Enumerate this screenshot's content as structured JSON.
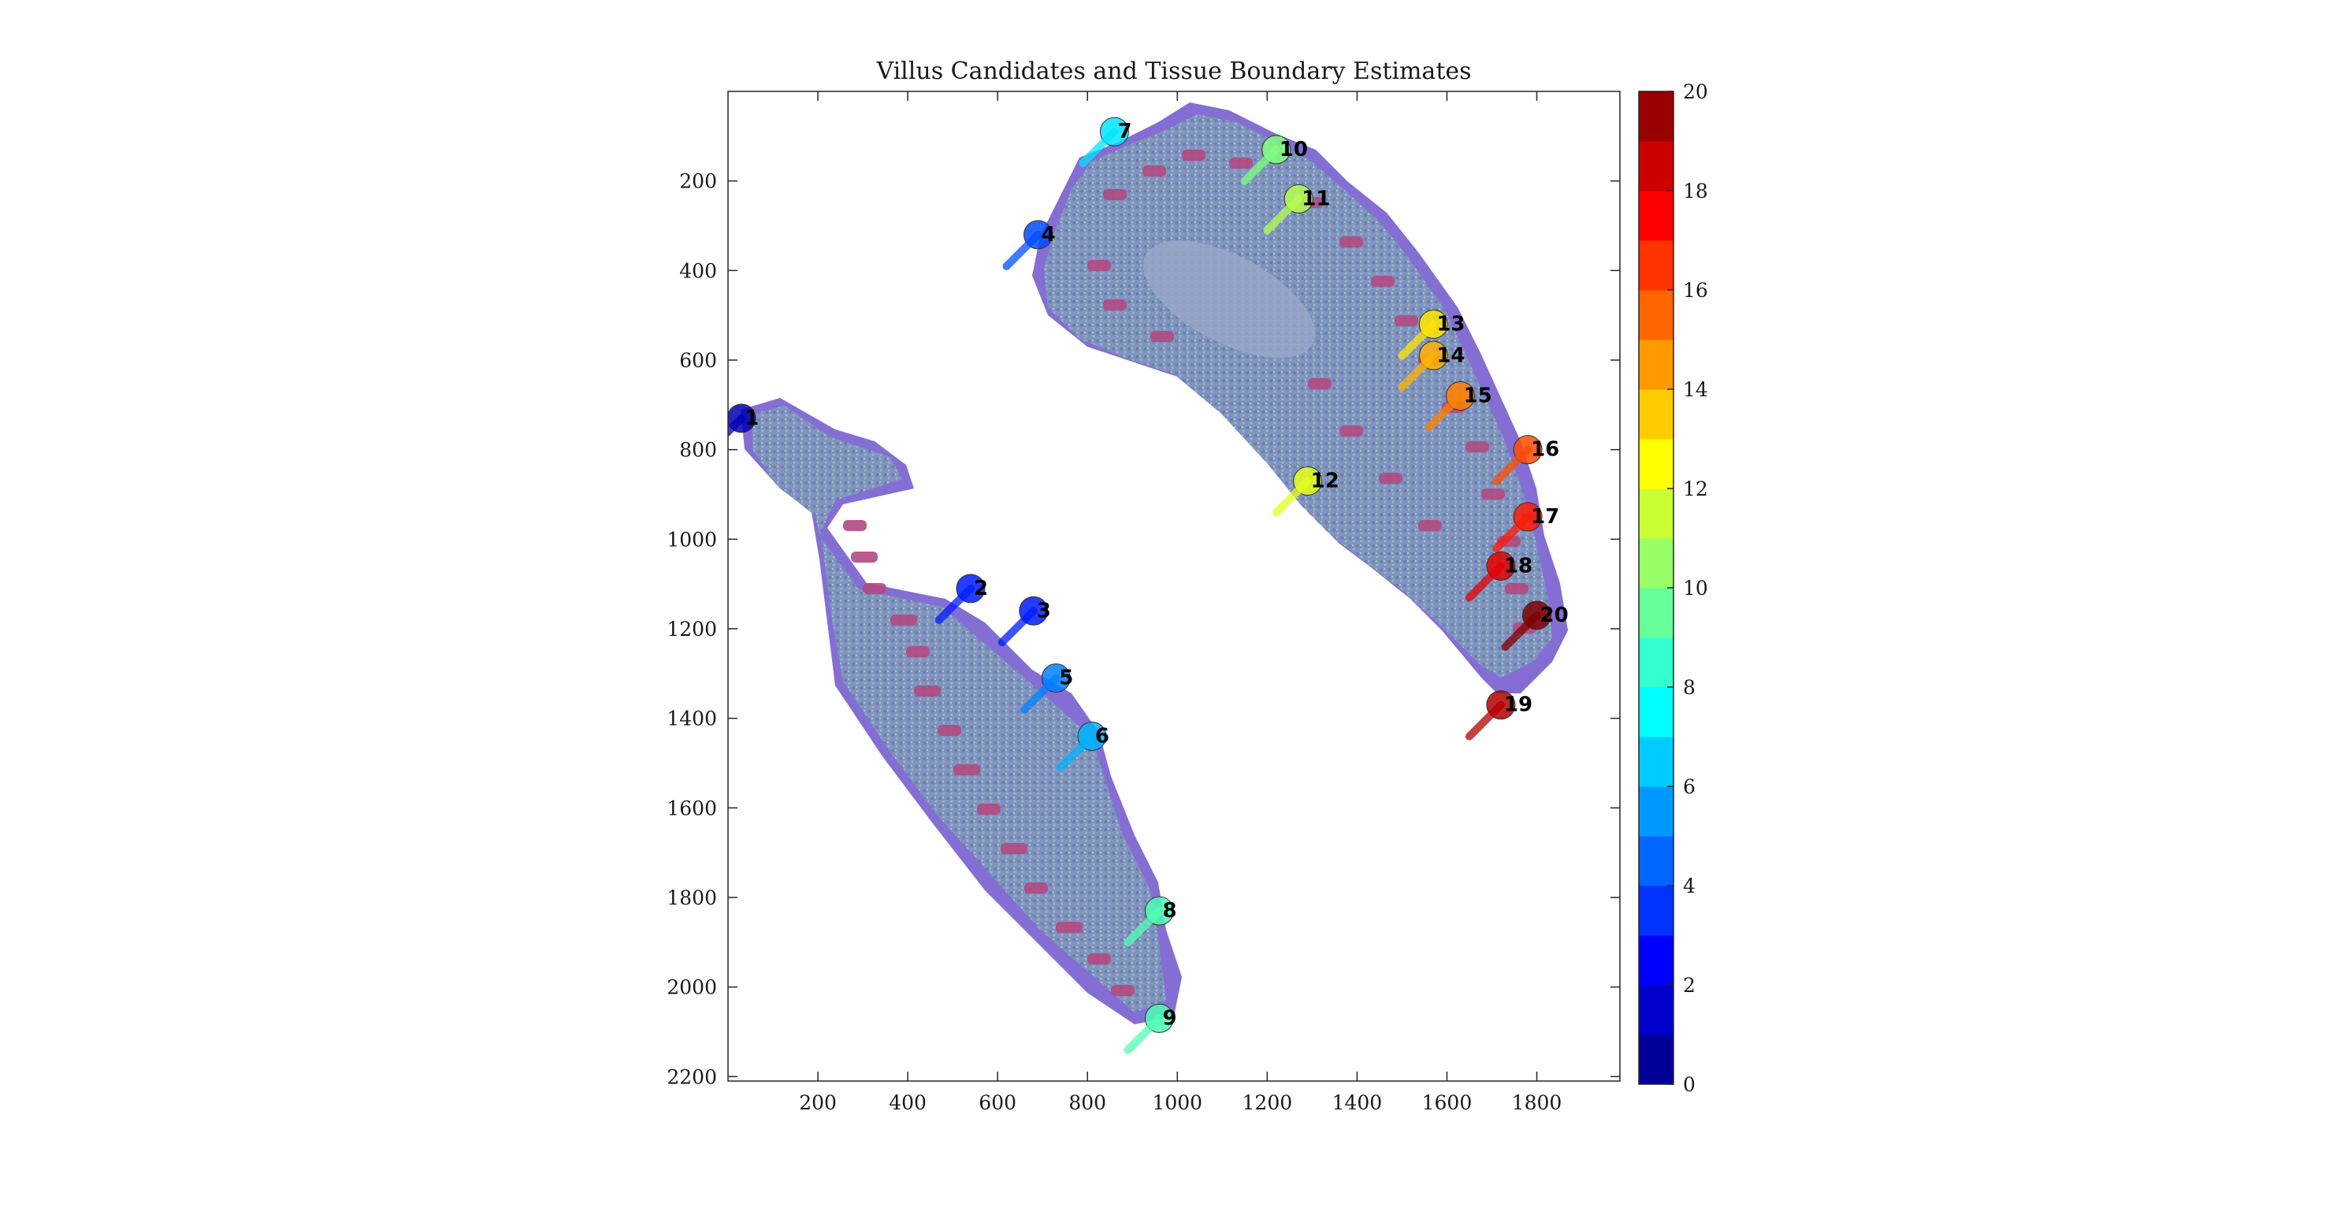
{
  "figure": {
    "title": "Villus Candidates and Tissue Boundary Estimates",
    "x_ticks": [
      "200",
      "400",
      "600",
      "800",
      "1000",
      "1200",
      "1400",
      "1600",
      "1800"
    ],
    "y_ticks": [
      "200",
      "400",
      "600",
      "800",
      "1000",
      "1200",
      "1400",
      "1600",
      "1800",
      "2000",
      "2200"
    ],
    "colorbar": {
      "ticks": [
        "0",
        "2",
        "4",
        "6",
        "8",
        "10",
        "12",
        "14",
        "16",
        "18",
        "20"
      ],
      "range": [
        0,
        20
      ],
      "levels": 20,
      "colormap": "jet"
    },
    "colors": {
      "tissue_base": "#8a9ac0",
      "tissue_edge": "#7a55d6",
      "crypt": "#b5457a",
      "stroma": "#a8e0b8",
      "submucosa": "#d9c8e6"
    }
  },
  "villi": [
    {
      "label": "1",
      "x": 30,
      "y": 730,
      "value": 1
    },
    {
      "label": "2",
      "x": 540,
      "y": 1110,
      "value": 3
    },
    {
      "label": "3",
      "x": 680,
      "y": 1160,
      "value": 3
    },
    {
      "label": "4",
      "x": 690,
      "y": 320,
      "value": 4
    },
    {
      "label": "5",
      "x": 730,
      "y": 1310,
      "value": 5
    },
    {
      "label": "6",
      "x": 810,
      "y": 1440,
      "value": 6
    },
    {
      "label": "7",
      "x": 860,
      "y": 90,
      "value": 7
    },
    {
      "label": "8",
      "x": 960,
      "y": 1830,
      "value": 9
    },
    {
      "label": "9",
      "x": 960,
      "y": 2070,
      "value": 9
    },
    {
      "label": "10",
      "x": 1220,
      "y": 130,
      "value": 10
    },
    {
      "label": "11",
      "x": 1270,
      "y": 240,
      "value": 11
    },
    {
      "label": "12",
      "x": 1290,
      "y": 870,
      "value": 12
    },
    {
      "label": "13",
      "x": 1570,
      "y": 520,
      "value": 13
    },
    {
      "label": "14",
      "x": 1570,
      "y": 590,
      "value": 14
    },
    {
      "label": "15",
      "x": 1630,
      "y": 680,
      "value": 15
    },
    {
      "label": "16",
      "x": 1780,
      "y": 800,
      "value": 16
    },
    {
      "label": "17",
      "x": 1780,
      "y": 950,
      "value": 17
    },
    {
      "label": "18",
      "x": 1720,
      "y": 1060,
      "value": 18
    },
    {
      "label": "19",
      "x": 1720,
      "y": 1370,
      "value": 19
    },
    {
      "label": "20",
      "x": 1800,
      "y": 1170,
      "value": 20
    }
  ]
}
